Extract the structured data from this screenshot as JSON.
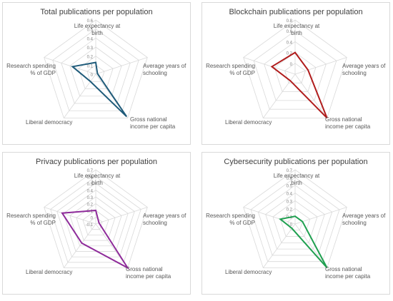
{
  "chart_data": [
    {
      "type": "radar",
      "title": "Total publications per population",
      "axes": [
        "Life expectancy at birth",
        "Average years of schooling",
        "Gross national income per capita",
        "Liberal democracy",
        "Research spending % of GDP"
      ],
      "axis_labels": {
        "life": [
          "Life expectancy at",
          "birth"
        ],
        "school": [
          "Average years of",
          "schooling"
        ],
        "gni": [
          "Gross national",
          "income per capita"
        ],
        "demo": [
          "Liberal democracy"
        ],
        "research": [
          "Research spending",
          "% of GDP"
        ]
      },
      "ticks": [
        "0",
        "0.1",
        "0.2",
        "0.3",
        "0.4",
        "0.5",
        "0.6"
      ],
      "rmin": 0,
      "rmax": 0.6,
      "rings": 6,
      "series": [
        {
          "values": [
            0.13,
            0.02,
            0.58,
            0.1,
            0.27
          ],
          "color": "#1f5b7a"
        }
      ]
    },
    {
      "type": "radar",
      "title": "Blockchain publications per population",
      "axes": [
        "Life expectancy at birth",
        "Average years of schooling",
        "Gross national income per capita",
        "Liberal democracy",
        "Research spending % of GDP"
      ],
      "axis_labels": {
        "life": [
          "Life expectancy at",
          "birth"
        ],
        "school": [
          "Average years of",
          "schooling"
        ],
        "gni": [
          "Gross national",
          "income per capita"
        ],
        "demo": [
          "Liberal democracy"
        ],
        "research": [
          "Research spending",
          "% of GDP"
        ]
      },
      "ticks": [
        "0",
        "0.2",
        "0.4",
        "0.6",
        "0.8"
      ],
      "rmin": -0.2,
      "rmax": 0.8,
      "rings": 5,
      "series": [
        {
          "values": [
            0.2,
            0.05,
            0.8,
            -0.05,
            0.25
          ],
          "color": "#b01c1c"
        }
      ]
    },
    {
      "type": "radar",
      "title": "Privacy publications per population",
      "axes": [
        "Life expectancy at birth",
        "Average years of schooling",
        "Gross national income per capita",
        "Liberal democracy",
        "Research spending % of GDP"
      ],
      "axis_labels": {
        "life": [
          "Life expectancy at",
          "birth"
        ],
        "school": [
          "Average years of",
          "schooling"
        ],
        "gni": [
          "Gross national",
          "income per capita"
        ],
        "demo": [
          "Liberal democracy"
        ],
        "research": [
          "Research spending",
          "% of GDP"
        ]
      },
      "ticks": [
        "-0.1",
        "0",
        "0.1",
        "0.2",
        "0.3",
        "0.4",
        "0.5",
        "0.6",
        "0.7"
      ],
      "rmin": -0.1,
      "rmax": 0.7,
      "rings": 8,
      "series": [
        {
          "values": [
            0.1,
            -0.05,
            0.7,
            0.25,
            0.42
          ],
          "color": "#8e2a9a"
        }
      ]
    },
    {
      "type": "radar",
      "title": "Cybersecurity publications per population",
      "axes": [
        "Life expectancy at birth",
        "Average years of schooling",
        "Gross national income per capita",
        "Liberal democracy",
        "Research spending % of GDP"
      ],
      "axis_labels": {
        "life": [
          "Life expectancy at",
          "birth"
        ],
        "school": [
          "Average years of",
          "schooling"
        ],
        "gni": [
          "Gross national",
          "income per capita"
        ],
        "demo": [
          "Liberal democracy"
        ],
        "research": [
          "Research spending",
          "% of GDP"
        ]
      },
      "ticks": [
        "0",
        "0.1",
        "0.2",
        "0.3",
        "0.4",
        "0.5",
        "0.6",
        "0.7"
      ],
      "rmin": 0,
      "rmax": 0.7,
      "rings": 7,
      "series": [
        {
          "values": [
            0.1,
            0.1,
            0.7,
            0.07,
            0.2
          ],
          "color": "#1fa050"
        }
      ]
    }
  ]
}
